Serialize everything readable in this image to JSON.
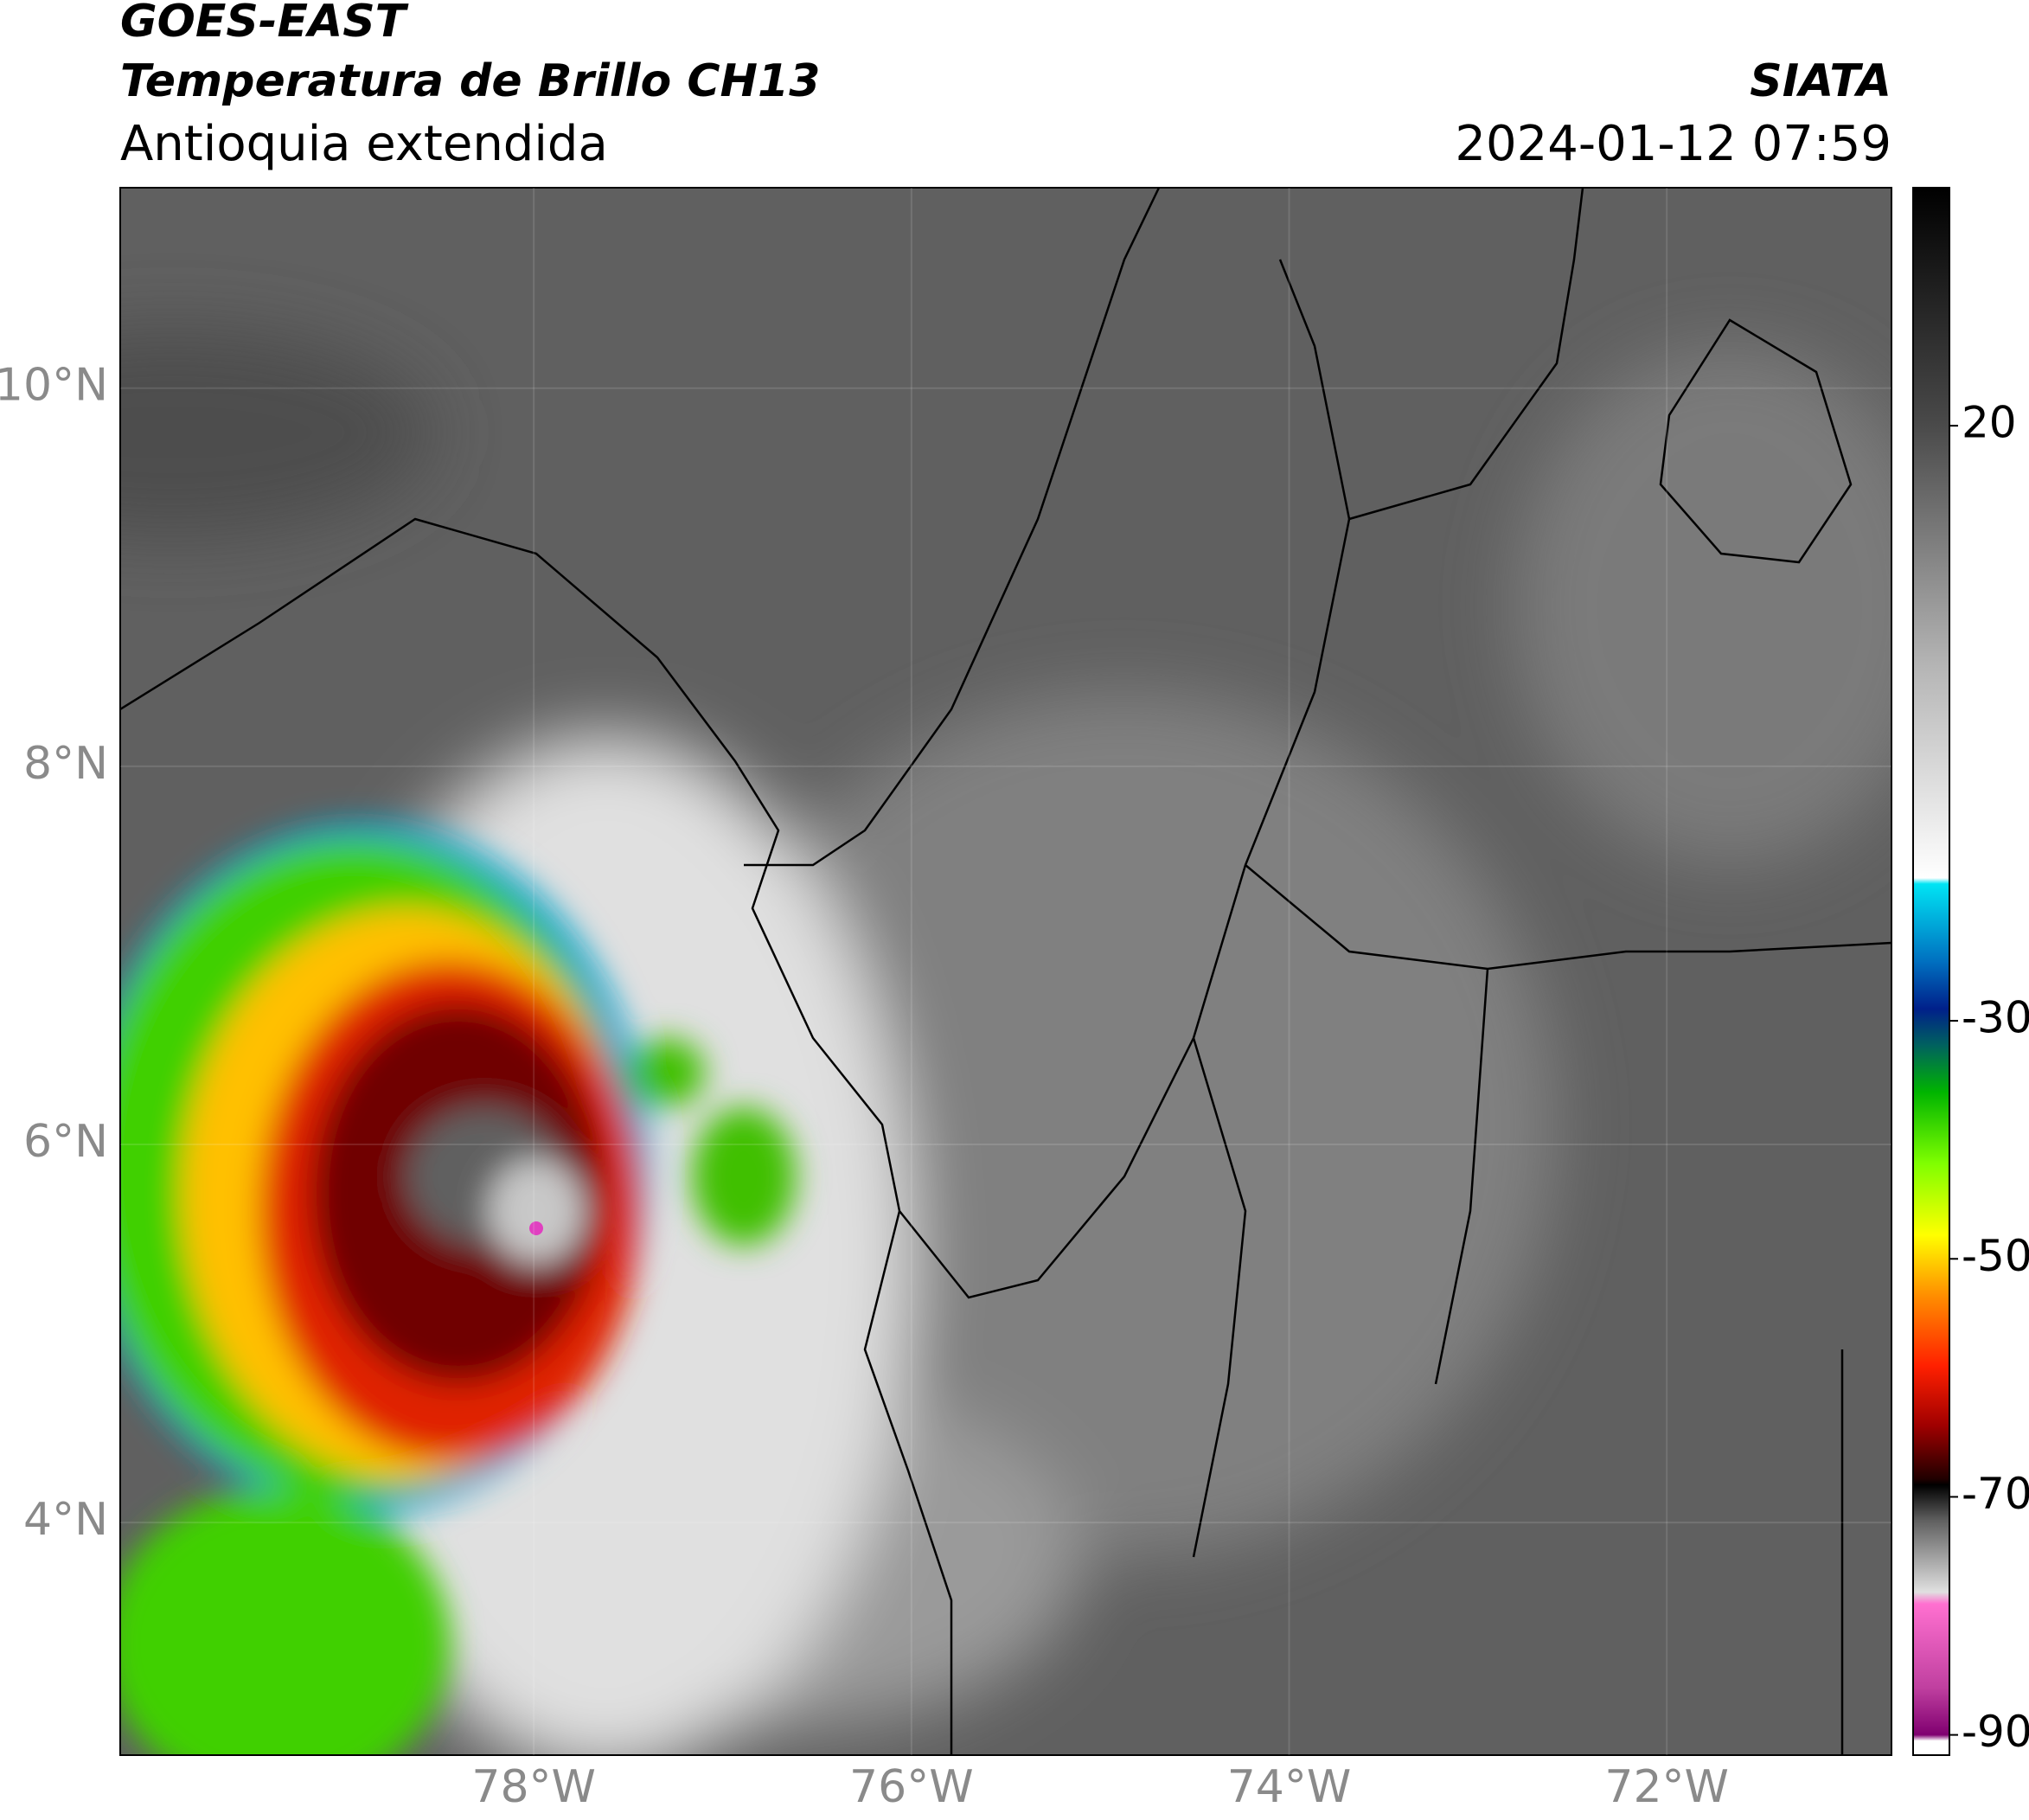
{
  "header": {
    "title": "GOES-EAST",
    "subtitle": "Temperatura de Brillo CH13",
    "region": "Antioquia extendida",
    "source": "SIATA",
    "datetime": "2024-01-12 07:59"
  },
  "map": {
    "xlim": [
      -80.19,
      -70.81
    ],
    "ylim": [
      2.77,
      11.06
    ],
    "xticks": [
      {
        "value": -78,
        "label": "78°W"
      },
      {
        "value": -76,
        "label": "76°W"
      },
      {
        "value": -74,
        "label": "74°W"
      },
      {
        "value": -72,
        "label": "72°W"
      }
    ],
    "yticks": [
      {
        "value": 10,
        "label": "10°N"
      },
      {
        "value": 8,
        "label": "8°N"
      },
      {
        "value": 6,
        "label": "6°N"
      },
      {
        "value": 4,
        "label": "4°N"
      }
    ]
  },
  "colorbar": {
    "range": [
      -91.7,
      40
    ],
    "ticks": [
      20,
      -30,
      -50,
      -70,
      -90
    ],
    "colormap": [
      [
        40,
        "#000000"
      ],
      [
        20,
        "#4a4a4a"
      ],
      [
        0,
        "#b4b4b4"
      ],
      [
        -18,
        "#ffffff"
      ],
      [
        -18.5,
        "#00e4f4"
      ],
      [
        -25,
        "#0070c0"
      ],
      [
        -29,
        "#00208a"
      ],
      [
        -32,
        "#006060"
      ],
      [
        -36,
        "#00b400"
      ],
      [
        -42,
        "#80ff00"
      ],
      [
        -48,
        "#ffff00"
      ],
      [
        -53,
        "#ff9000"
      ],
      [
        -59,
        "#ff2000"
      ],
      [
        -64,
        "#a00000"
      ],
      [
        -68.5,
        "#200000"
      ],
      [
        -69,
        "#000000"
      ],
      [
        -72,
        "#606060"
      ],
      [
        -78,
        "#e0e0e0"
      ],
      [
        -79,
        "#ff70d0"
      ],
      [
        -86,
        "#c040a0"
      ],
      [
        -90,
        "#800070"
      ],
      [
        -90.5,
        "#ffffff"
      ]
    ]
  }
}
